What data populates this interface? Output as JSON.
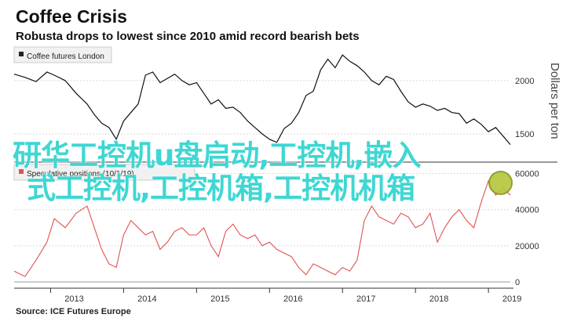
{
  "title": "Coffee Crisis",
  "subtitle": "Robusta drops to lowest since 2010 amid record bearish bets",
  "source": "Source: ICE Futures Europe",
  "overlay": {
    "line1": "研华工控机u盘启动,工控机,嵌入",
    "line2": "式工控机,工控机箱,工控机机箱"
  },
  "colors": {
    "price_line": "#111111",
    "positions_line": "#e0524f",
    "overlay_text": "#3ed7d3",
    "marker": "#b5c73f"
  },
  "chart_data": [
    {
      "type": "line",
      "legend": "Coffee futures London",
      "legend_position": "top-left",
      "ylabel": "Dollars per ton",
      "ylim": [
        1250,
        2300
      ],
      "yticks": [
        1500,
        2000
      ],
      "grid": true,
      "x": [
        "2012.5",
        "2012.65",
        "2012.8",
        "2012.95",
        "2013.05",
        "2013.2",
        "2013.35",
        "2013.5",
        "2013.6",
        "2013.7",
        "2013.8",
        "2013.9",
        "2014.0",
        "2014.1",
        "2014.2",
        "2014.3",
        "2014.4",
        "2014.5",
        "2014.6",
        "2014.7",
        "2014.8",
        "2014.9",
        "2015.0",
        "2015.1",
        "2015.2",
        "2015.3",
        "2015.4",
        "2015.5",
        "2015.6",
        "2015.7",
        "2015.8",
        "2015.9",
        "2016.0",
        "2016.1",
        "2016.2",
        "2016.3",
        "2016.4",
        "2016.5",
        "2016.6",
        "2016.7",
        "2016.8",
        "2016.9",
        "2017.0",
        "2017.1",
        "2017.2",
        "2017.3",
        "2017.4",
        "2017.5",
        "2017.6",
        "2017.7",
        "2017.8",
        "2017.9",
        "2018.0",
        "2018.1",
        "2018.2",
        "2018.3",
        "2018.4",
        "2018.5",
        "2018.6",
        "2018.7",
        "2018.8",
        "2018.9",
        "2019.0",
        "2019.1",
        "2019.2",
        "2019.3"
      ],
      "series": [
        {
          "name": "Coffee futures London",
          "values": [
            2060,
            2030,
            1990,
            2080,
            2050,
            2000,
            1880,
            1780,
            1680,
            1600,
            1560,
            1450,
            1620,
            1700,
            1780,
            2050,
            2080,
            1980,
            2020,
            2060,
            2000,
            1960,
            1980,
            1880,
            1780,
            1820,
            1740,
            1750,
            1700,
            1620,
            1560,
            1500,
            1450,
            1420,
            1550,
            1600,
            1700,
            1860,
            1900,
            2100,
            2200,
            2120,
            2240,
            2180,
            2140,
            2080,
            2000,
            1960,
            2040,
            2010,
            1900,
            1800,
            1750,
            1780,
            1760,
            1720,
            1740,
            1700,
            1690,
            1600,
            1640,
            1590,
            1520,
            1560,
            1480,
            1400
          ]
        }
      ]
    },
    {
      "type": "area",
      "legend": "Speculative positions (10/1/19)",
      "legend_position": "top-left",
      "ylim": [
        0,
        65000
      ],
      "yticks": [
        0,
        20000,
        40000,
        60000
      ],
      "grid": true,
      "x": [
        "2012.5",
        "2012.65",
        "2012.8",
        "2012.95",
        "2013.05",
        "2013.2",
        "2013.35",
        "2013.5",
        "2013.6",
        "2013.7",
        "2013.8",
        "2013.9",
        "2014.0",
        "2014.1",
        "2014.2",
        "2014.3",
        "2014.4",
        "2014.5",
        "2014.6",
        "2014.7",
        "2014.8",
        "2014.9",
        "2015.0",
        "2015.1",
        "2015.2",
        "2015.3",
        "2015.4",
        "2015.5",
        "2015.6",
        "2015.7",
        "2015.8",
        "2015.9",
        "2016.0",
        "2016.1",
        "2016.2",
        "2016.3",
        "2016.4",
        "2016.5",
        "2016.6",
        "2016.7",
        "2016.8",
        "2016.9",
        "2017.0",
        "2017.1",
        "2017.2",
        "2017.3",
        "2017.4",
        "2017.5",
        "2017.6",
        "2017.7",
        "2017.8",
        "2017.9",
        "2018.0",
        "2018.1",
        "2018.2",
        "2018.3",
        "2018.4",
        "2018.5",
        "2018.6",
        "2018.7",
        "2018.8",
        "2018.9",
        "2019.0",
        "2019.1",
        "2019.2",
        "2019.3"
      ],
      "series": [
        {
          "name": "Speculative positions (10/1/19)",
          "values": [
            6000,
            3000,
            12000,
            22000,
            35000,
            30000,
            38000,
            42000,
            30000,
            18000,
            10000,
            8000,
            26000,
            34000,
            30000,
            26000,
            28000,
            18000,
            22000,
            28000,
            30000,
            26000,
            26000,
            30000,
            20000,
            14000,
            28000,
            32000,
            26000,
            24000,
            26000,
            20000,
            22000,
            18000,
            16000,
            14000,
            8000,
            4000,
            10000,
            8000,
            6000,
            4000,
            8000,
            6000,
            12000,
            34000,
            42000,
            36000,
            34000,
            32000,
            38000,
            36000,
            30000,
            32000,
            38000,
            22000,
            30000,
            36000,
            40000,
            34000,
            30000,
            44000,
            56000,
            48000,
            52000,
            48000
          ]
        }
      ]
    }
  ],
  "x_axis": {
    "ticks": [
      "2013",
      "2014",
      "2015",
      "2016",
      "2017",
      "2018",
      "2019"
    ]
  }
}
